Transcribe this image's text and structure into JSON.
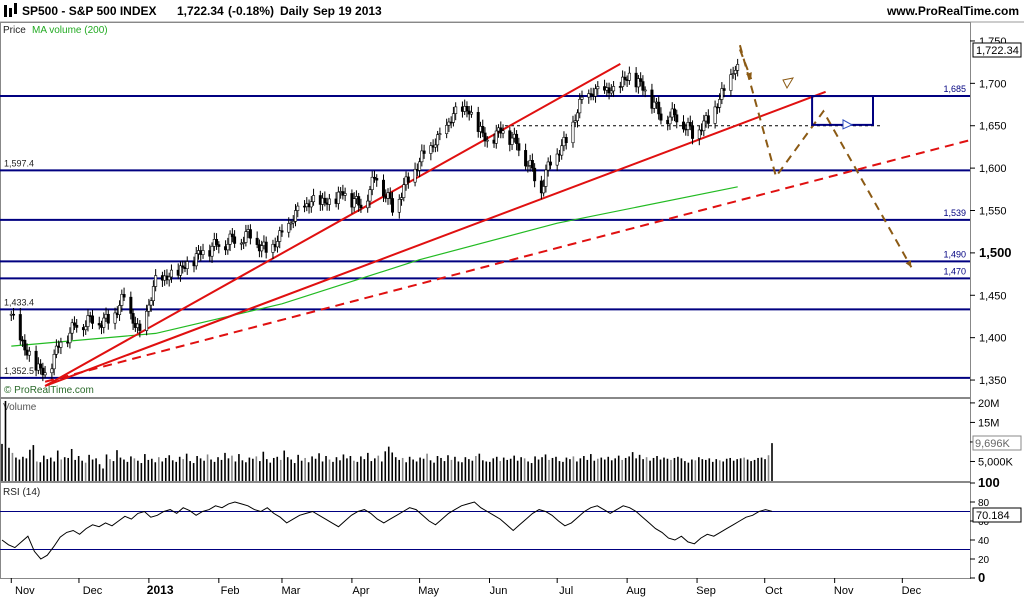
{
  "header": {
    "symbol": "SP500 - S&P 500 INDEX",
    "price": "1,722.34",
    "change": "(-0.18%)",
    "period": "Daily",
    "date": "Sep 19 2013",
    "site": "www.ProRealTime.com"
  },
  "price_panel": {
    "indicator_label": "Price",
    "indicator_ma": "MA volume (200)",
    "copyright": "© ProRealTime.com",
    "last_price_label": "1,722.34",
    "y_ticks": [
      "1,750",
      "1,700",
      "1,650",
      "1,600",
      "1,550",
      "1,500",
      "1,450",
      "1,400",
      "1,350"
    ],
    "level_labels": [
      "1,685",
      "1,597.4",
      "1,539",
      "1,490",
      "1,470",
      "1,433.4",
      "1,352.5"
    ]
  },
  "volume_panel": {
    "label": "Volume",
    "y_ticks": [
      "20M",
      "15M",
      "10M",
      "5,000K"
    ],
    "last_label": "9,696K"
  },
  "rsi_panel": {
    "label": "RSI (14)",
    "y_ticks": [
      "100",
      "80",
      "60",
      "40",
      "20",
      "0"
    ],
    "last_label": "70.184"
  },
  "x_axis": {
    "labels": [
      "Nov",
      "Dec",
      "2013",
      "Feb",
      "Mar",
      "Apr",
      "May",
      "Jun",
      "Jul",
      "Aug",
      "Sep",
      "Oct",
      "Nov",
      "Dec"
    ]
  },
  "colors": {
    "level_line": "#000080",
    "trend_line": "#e01010",
    "ma_line": "#22bb22",
    "projection": "#8b5a14",
    "rsi_line": "#000000"
  },
  "chart_data": [
    {
      "type": "line",
      "title": "SP500 - S&P 500 INDEX",
      "ylim": [
        1330,
        1770
      ],
      "horizontal_levels": [
        1685,
        1597.4,
        1539,
        1490,
        1470,
        1433.4,
        1352.5
      ],
      "dashed_level": 1650,
      "series": [
        {
          "name": "Price",
          "x": [
            "2012-11-01",
            "2012-11-08",
            "2012-11-16",
            "2012-11-23",
            "2012-11-30",
            "2012-12-07",
            "2012-12-14",
            "2012-12-21",
            "2012-12-28",
            "2013-01-04",
            "2013-01-11",
            "2013-01-18",
            "2013-01-25",
            "2013-02-01",
            "2013-02-08",
            "2013-02-15",
            "2013-02-22",
            "2013-03-01",
            "2013-03-08",
            "2013-03-15",
            "2013-03-22",
            "2013-03-28",
            "2013-04-05",
            "2013-04-12",
            "2013-04-19",
            "2013-04-26",
            "2013-05-03",
            "2013-05-10",
            "2013-05-17",
            "2013-05-22",
            "2013-05-31",
            "2013-06-07",
            "2013-06-14",
            "2013-06-24",
            "2013-06-28",
            "2013-07-05",
            "2013-07-12",
            "2013-07-19",
            "2013-07-26",
            "2013-08-02",
            "2013-08-09",
            "2013-08-16",
            "2013-08-23",
            "2013-08-30",
            "2013-09-06",
            "2013-09-13",
            "2013-09-19"
          ],
          "values": [
            1425,
            1380,
            1355,
            1395,
            1415,
            1420,
            1418,
            1445,
            1402,
            1465,
            1472,
            1485,
            1502,
            1510,
            1515,
            1520,
            1500,
            1520,
            1548,
            1560,
            1558,
            1570,
            1555,
            1590,
            1552,
            1585,
            1615,
            1635,
            1665,
            1668,
            1630,
            1645,
            1625,
            1575,
            1607,
            1630,
            1680,
            1690,
            1690,
            1708,
            1692,
            1660,
            1660,
            1640,
            1655,
            1690,
            1722.34
          ]
        },
        {
          "name": "MA",
          "x": [
            "2012-11-01",
            "2013-01-04",
            "2013-03-01",
            "2013-05-01",
            "2013-07-01",
            "2013-09-19"
          ],
          "values": [
            1390,
            1405,
            1440,
            1492,
            1535,
            1578
          ]
        }
      ],
      "annotations": [
        {
          "type": "trendline",
          "from": [
            "2012-11-16",
            1343
          ],
          "to": [
            "2013-07-29",
            1723
          ]
        },
        {
          "type": "trendline",
          "from": [
            "2012-11-16",
            1343
          ],
          "to": [
            "2013-10-28",
            1690
          ]
        },
        {
          "type": "trendline_dashed",
          "from": [
            "2012-11-16",
            1348
          ],
          "to": [
            "2013-12-31",
            1633
          ]
        },
        {
          "type": "projection_path",
          "points": [
            [
              "2013-09-20",
              1745
            ],
            [
              "2013-10-06",
              1590
            ],
            [
              "2013-10-27",
              1667
            ],
            [
              "2013-12-05",
              1483
            ]
          ]
        },
        {
          "type": "projection_path",
          "points": [
            [
              "2013-09-20",
              1740
            ],
            [
              "2013-09-25",
              1705
            ]
          ]
        },
        {
          "type": "box",
          "x": [
            "2013-10-22",
            "2013-11-18"
          ],
          "y": [
            1651,
            1685
          ]
        }
      ]
    },
    {
      "type": "bar",
      "title": "Volume",
      "ylim": [
        0,
        21000000
      ],
      "values": [
        9.5,
        20.5,
        8.5,
        7.2,
        6.0,
        5.5,
        6.2,
        5.8,
        8.0,
        9.2,
        5.0,
        4.8,
        6.5,
        5.6,
        6.0,
        5.0,
        7.8,
        5.5,
        6.1,
        5.9,
        8.2,
        5.4,
        6.4,
        5.2,
        4.7,
        6.7,
        5.5,
        5.8,
        4.3,
        3.2,
        6.8,
        5.6,
        5.1,
        7.9,
        6.0,
        5.5,
        4.9,
        6.3,
        5.8,
        5.2,
        4.6,
        6.9,
        5.4,
        5.7,
        4.8,
        6.1,
        5.0,
        5.9,
        6.6,
        5.3,
        4.9,
        6.2,
        5.6,
        7.0,
        5.1,
        4.6,
        6.4,
        5.8,
        5.2,
        6.8,
        5.5,
        4.9,
        6.1,
        5.4,
        7.2,
        5.8,
        6.5,
        5.0,
        6.9,
        5.3,
        4.8,
        6.0,
        5.7,
        6.3,
        5.1,
        7.5,
        5.6,
        4.7,
        5.9,
        6.2,
        5.4,
        7.8,
        6.1,
        5.5,
        4.6,
        6.7,
        5.2,
        5.9,
        4.8,
        6.3,
        5.7,
        7.1,
        5.0,
        6.4,
        5.5,
        4.9,
        6.1,
        5.3,
        6.8,
        5.8,
        6.4,
        5.2,
        4.9,
        6.3,
        5.6,
        7.2,
        5.1,
        5.8,
        6.5,
        5.0,
        7.6,
        8.8,
        7.3,
        6.1,
        5.4,
        5.9,
        4.8,
        6.2,
        5.5,
        5.0,
        6.0,
        5.7,
        7.0,
        5.3,
        4.7,
        6.4,
        5.9,
        5.1,
        6.6,
        5.4,
        6.2,
        5.0,
        4.8,
        6.1,
        5.6,
        5.2,
        6.4,
        7.0,
        5.3,
        5.0,
        4.9,
        5.8,
        6.2,
        5.1,
        6.0,
        5.4,
        5.7,
        6.5,
        5.2,
        6.1,
        5.8,
        5.0,
        4.6,
        6.3,
        5.5,
        6.1,
        6.8,
        5.4,
        5.9,
        6.2,
        5.1,
        4.9,
        6.0,
        5.6,
        6.3,
        5.0,
        5.8,
        6.4,
        5.4,
        6.9,
        5.2,
        5.7,
        6.0,
        5.5,
        6.2,
        5.3,
        5.8,
        6.5,
        5.4,
        5.9,
        6.3,
        7.4,
        5.8,
        6.7,
        5.6,
        6.1,
        5.2,
        5.9,
        6.4,
        5.5,
        6.0,
        5.7,
        5.4,
        5.9,
        6.2,
        5.8,
        5.1,
        4.7,
        5.5,
        5.3,
        6.1,
        5.6,
        5.4,
        5.8,
        4.9,
        5.6,
        5.3,
        5.0,
        5.7,
        5.9,
        5.2,
        5.6,
        5.8,
        6.0,
        5.5,
        5.1,
        5.4,
        5.9,
        6.0,
        5.6,
        6.6,
        9.7
      ]
    },
    {
      "type": "line",
      "title": "RSI (14)",
      "ylim": [
        0,
        100
      ],
      "values": [
        40,
        35,
        32,
        38,
        44,
        28,
        20,
        24,
        33,
        43,
        48,
        50,
        46,
        52,
        56,
        54,
        58,
        55,
        60,
        65,
        62,
        68,
        70,
        64,
        66,
        70,
        72,
        68,
        74,
        71,
        66,
        70,
        72,
        76,
        74,
        78,
        80,
        78,
        76,
        72,
        70,
        74,
        68,
        64,
        58,
        62,
        66,
        68,
        70,
        66,
        62,
        58,
        54,
        60,
        66,
        70,
        72,
        68,
        62,
        58,
        62,
        66,
        70,
        74,
        72,
        66,
        60,
        56,
        62,
        68,
        72,
        76,
        78,
        80,
        74,
        70,
        66,
        62,
        56,
        50,
        56,
        62,
        68,
        72,
        70,
        66,
        60,
        55,
        58,
        64,
        70,
        74,
        76,
        72,
        68,
        72,
        76,
        74,
        70,
        64,
        58,
        52,
        48,
        42,
        40,
        44,
        38,
        36,
        42,
        46,
        44,
        48,
        52,
        56,
        60,
        64,
        66,
        70,
        72,
        70.18
      ]
    }
  ]
}
